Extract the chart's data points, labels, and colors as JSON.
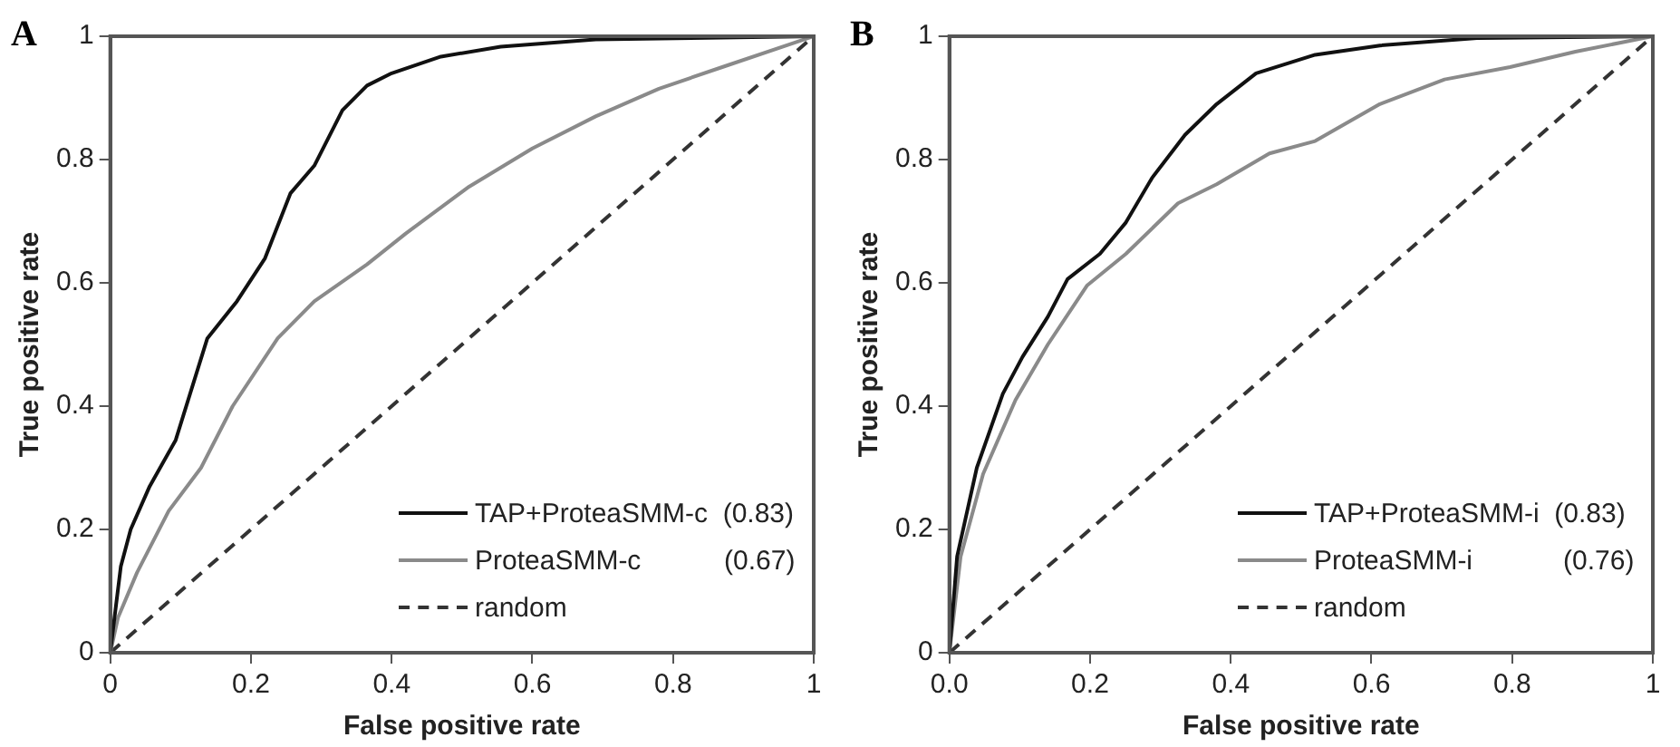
{
  "chart_data": [
    {
      "type": "line",
      "title": "A",
      "xlabel": "False positive rate",
      "ylabel": "True positive rate",
      "xlim": [
        0,
        1
      ],
      "xticks": [
        0,
        0.2,
        0.4,
        0.6,
        0.8,
        1
      ],
      "ylim": [
        0,
        1
      ],
      "yticks": [
        0,
        0.2,
        0.4,
        0.6,
        0.8,
        1
      ],
      "grid": false,
      "legend": "bottom right",
      "marker": "none",
      "series": [
        {
          "name": "TAP+ProteaSMM-c  (0.83)",
          "color": "#111111",
          "line_style": "solid",
          "x": [
            0,
            0.006,
            0.015,
            0.029,
            0.056,
            0.093,
            0.138,
            0.18,
            0.22,
            0.256,
            0.29,
            0.33,
            0.365,
            0.4,
            0.47,
            0.555,
            0.69,
            1
          ],
          "values": [
            0,
            0.057,
            0.14,
            0.2,
            0.27,
            0.345,
            0.51,
            0.57,
            0.64,
            0.745,
            0.79,
            0.88,
            0.92,
            0.94,
            0.967,
            0.983,
            0.995,
            1
          ]
        },
        {
          "name": "ProteaSMM-c           (0.67)",
          "color": "#8a8a8a",
          "line_style": "solid",
          "x": [
            0,
            0.011,
            0.038,
            0.083,
            0.129,
            0.174,
            0.238,
            0.29,
            0.365,
            0.42,
            0.51,
            0.6,
            0.69,
            0.78,
            0.87,
            1
          ],
          "values": [
            0,
            0.057,
            0.13,
            0.23,
            0.3,
            0.4,
            0.51,
            0.57,
            0.63,
            0.68,
            0.756,
            0.818,
            0.87,
            0.915,
            0.95,
            1
          ]
        },
        {
          "name": "random",
          "color": "#333333",
          "line_style": "dashed",
          "x": [
            0,
            1
          ],
          "values": [
            0,
            1
          ]
        }
      ]
    },
    {
      "type": "line",
      "title": "B",
      "xlabel": "False positive rate",
      "ylabel": "True positive rate",
      "xlim": [
        0,
        1
      ],
      "xticks": [
        {
          "value": 0,
          "label": "0.0"
        },
        0.2,
        0.4,
        0.6,
        0.8,
        1
      ],
      "ylim": [
        0,
        1
      ],
      "yticks": [
        0,
        0.2,
        0.4,
        0.6,
        0.8,
        1
      ],
      "grid": false,
      "legend": "bottom right",
      "marker": "none",
      "series": [
        {
          "name": "TAP+ProteaSMM-i  (0.83)",
          "color": "#111111",
          "line_style": "solid",
          "x": [
            0,
            0.011,
            0.039,
            0.076,
            0.104,
            0.14,
            0.168,
            0.214,
            0.251,
            0.288,
            0.335,
            0.38,
            0.436,
            0.52,
            0.612,
            0.75,
            1
          ],
          "values": [
            0,
            0.156,
            0.3,
            0.42,
            0.48,
            0.545,
            0.606,
            0.647,
            0.698,
            0.77,
            0.84,
            0.89,
            0.94,
            0.97,
            0.985,
            0.997,
            1
          ]
        },
        {
          "name": "ProteaSMM-i            (0.76)",
          "color": "#8a8a8a",
          "line_style": "solid",
          "x": [
            0,
            0.016,
            0.048,
            0.094,
            0.14,
            0.196,
            0.251,
            0.325,
            0.38,
            0.455,
            0.52,
            0.612,
            0.704,
            0.797,
            0.89,
            1
          ],
          "values": [
            0,
            0.156,
            0.29,
            0.41,
            0.5,
            0.596,
            0.647,
            0.729,
            0.76,
            0.81,
            0.83,
            0.89,
            0.93,
            0.95,
            0.975,
            1
          ]
        },
        {
          "name": "random",
          "color": "#333333",
          "line_style": "dashed",
          "x": [
            0,
            1
          ],
          "values": [
            0,
            1
          ]
        }
      ]
    }
  ]
}
